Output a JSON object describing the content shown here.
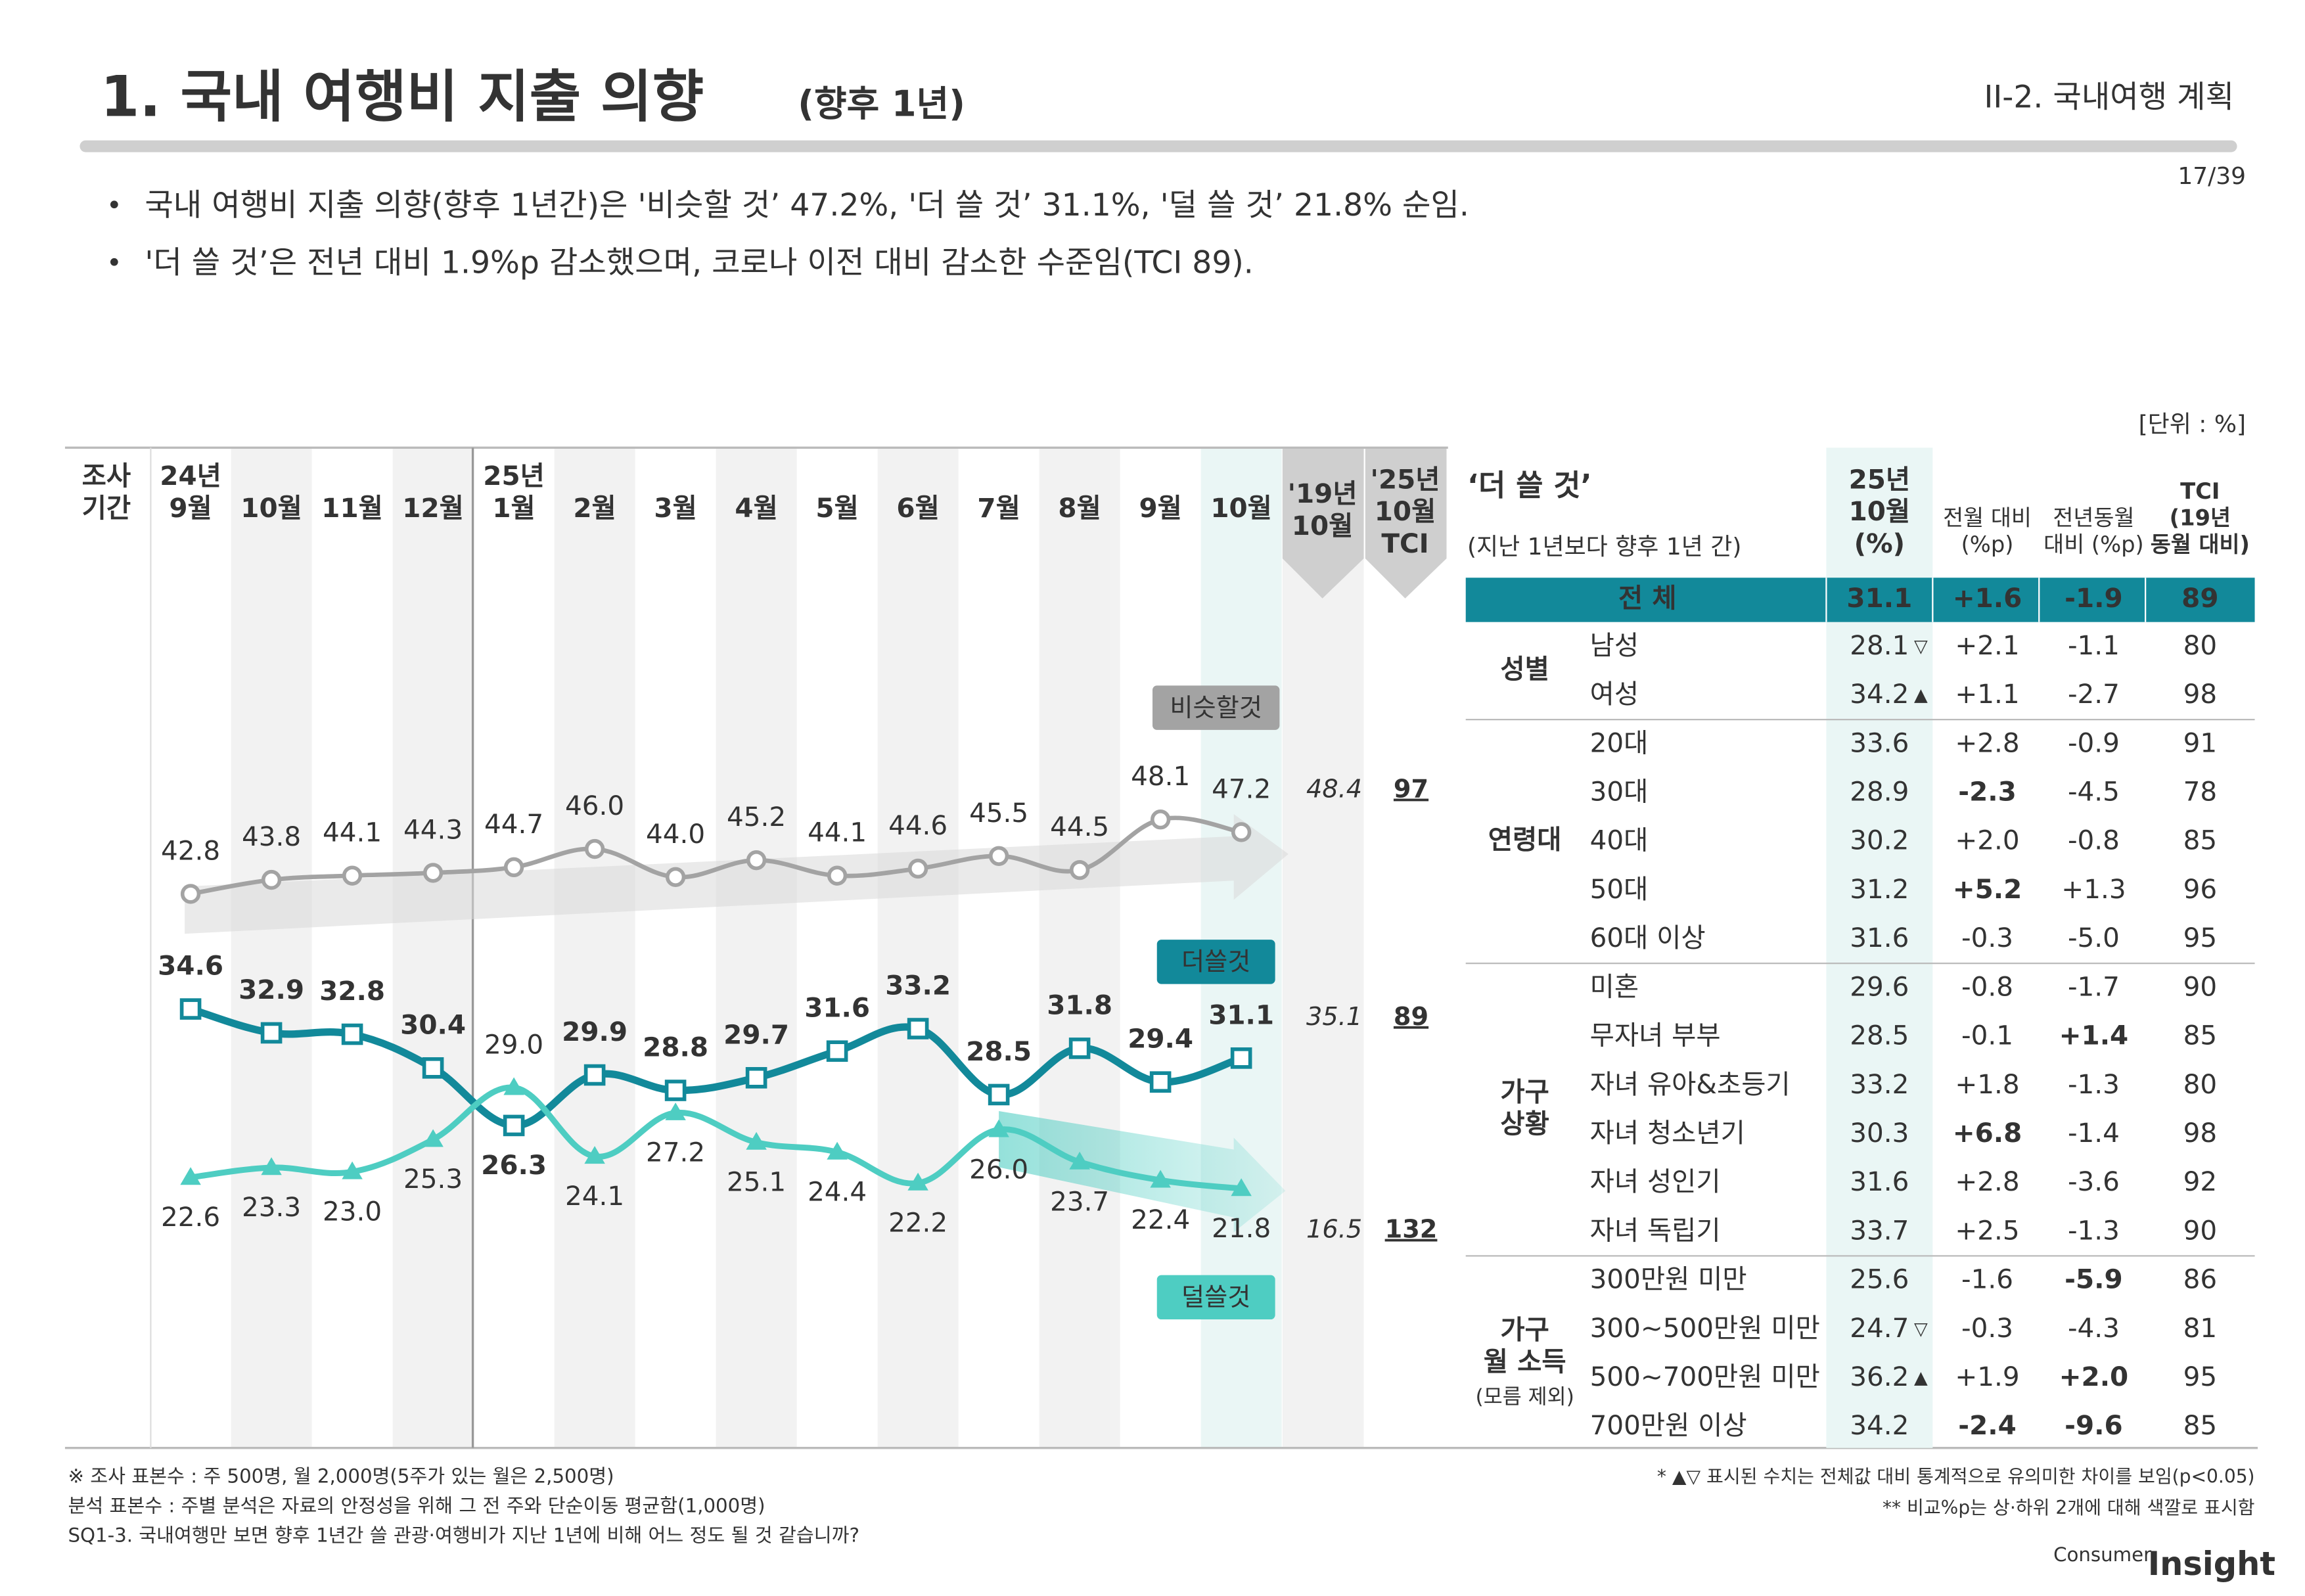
{
  "header": {
    "title": "1. 국내 여행비 지출 의향",
    "title_suffix": "(향후 1년)",
    "section": "II-2. 국내여행 계획",
    "page": "17/39"
  },
  "bullets": [
    "국내 여행비 지출 의향(향후 1년간)은 '비슷할 것’ 47.2%, '더 쓸 것’ 31.1%, '덜 쓸 것’ 21.8% 순임.",
    "'더 쓸 것’은 전년 대비 1.9%p 감소했으며, 코로나 이전 대비 감소한 수준임(TCI 89)."
  ],
  "unit": "[단위 : %]",
  "chart_data": {
    "type": "line",
    "row_label": "조사\n기간",
    "categories": [
      "24년\n9월",
      "10월",
      "11월",
      "12월",
      "25년\n1월",
      "2월",
      "3월",
      "4월",
      "5월",
      "6월",
      "7월",
      "8월",
      "9월",
      "10월"
    ],
    "ref_2019_label": "'19년\n10월",
    "tci_label": "'25년\n10월\nTCI",
    "series": [
      {
        "name": "비슷할것",
        "color": "#a3a3a3",
        "values": [
          42.8,
          43.8,
          44.1,
          44.3,
          44.7,
          46.0,
          44.0,
          45.2,
          44.1,
          44.6,
          45.5,
          44.5,
          48.1,
          47.2
        ],
        "value_labels": [
          "42.8",
          "43.8",
          "44.1",
          "44.3",
          "44.7",
          "46.0",
          "44.0",
          "45.2",
          "44.1",
          "44.6",
          "45.5",
          "44.5",
          "48.1",
          "47.2"
        ],
        "ref_2019": 48.4,
        "tci": 97
      },
      {
        "name": "더쓸것",
        "color": "#12899a",
        "values": [
          34.6,
          32.9,
          32.8,
          30.4,
          26.3,
          29.9,
          28.8,
          29.7,
          31.6,
          33.2,
          28.5,
          31.8,
          29.4,
          31.1
        ],
        "value_labels": [
          "34.6",
          "32.9",
          "32.8",
          "30.4",
          "26.3",
          "29.9",
          "28.8",
          "29.7",
          "31.6",
          "33.2",
          "28.5",
          "31.8",
          "29.4",
          "31.1"
        ],
        "ref_2019": 35.1,
        "tci": 89
      },
      {
        "name": "덜쓸것",
        "color": "#4ecdc2",
        "values": [
          22.6,
          23.3,
          23.0,
          25.3,
          29.0,
          24.1,
          27.2,
          25.1,
          24.4,
          22.2,
          26.0,
          23.7,
          22.4,
          21.8
        ],
        "value_labels": [
          "22.6",
          "23.3",
          "23.0",
          "25.3",
          "29.0",
          "24.1",
          "27.2",
          "25.1",
          "24.4",
          "22.2",
          "26.0",
          "23.7",
          "22.4",
          "21.8"
        ],
        "ref_2019": 16.5,
        "tci": 132
      }
    ]
  },
  "table": {
    "title": "‘더 쓸 것’",
    "subtitle": "(지난 1년보다 향후 1년 간)",
    "columns": [
      "25년\n10월\n(%)",
      "전월 대비\n(%p)",
      "전년동월\n대비 (%p)",
      "TCI\n(19년\n동월 대비)"
    ],
    "total": {
      "label": "전 체",
      "cells": [
        "31.1",
        "+1.6",
        "-1.9",
        "89"
      ]
    },
    "groups": [
      {
        "label": "성별",
        "rows": [
          {
            "label": "남성",
            "cells": [
              "28.1",
              "+2.1",
              "-1.1",
              "80"
            ],
            "sig": "▽"
          },
          {
            "label": "여성",
            "cells": [
              "34.2",
              "+1.1",
              "-2.7",
              "98"
            ],
            "sig": "▲"
          }
        ]
      },
      {
        "label": "연령대",
        "rows": [
          {
            "label": "20대",
            "cells": [
              "33.6",
              "+2.8",
              "-0.9",
              "91"
            ]
          },
          {
            "label": "30대",
            "cells": [
              "28.9",
              "-2.3",
              "-4.5",
              "78"
            ],
            "highlights": [
              {
                "col": 1,
                "color": "#1f2fd6"
              }
            ]
          },
          {
            "label": "40대",
            "cells": [
              "30.2",
              "+2.0",
              "-0.8",
              "85"
            ]
          },
          {
            "label": "50대",
            "cells": [
              "31.2",
              "+5.2",
              "+1.3",
              "96"
            ],
            "highlights": [
              {
                "col": 1,
                "color": "#e8131a"
              }
            ]
          },
          {
            "label": "60대 이상",
            "cells": [
              "31.6",
              "-0.3",
              "-5.0",
              "95"
            ]
          }
        ]
      },
      {
        "label": "가구\n상황",
        "rows": [
          {
            "label": "미혼",
            "cells": [
              "29.6",
              "-0.8",
              "-1.7",
              "90"
            ]
          },
          {
            "label": "무자녀 부부",
            "cells": [
              "28.5",
              "-0.1",
              "+1.4",
              "85"
            ],
            "highlights": [
              {
                "col": 2,
                "color": "#e8131a"
              }
            ]
          },
          {
            "label": "자녀 유아&초등기",
            "cells": [
              "33.2",
              "+1.8",
              "-1.3",
              "80"
            ]
          },
          {
            "label": "자녀 청소년기",
            "cells": [
              "30.3",
              "+6.8",
              "-1.4",
              "98"
            ],
            "highlights": [
              {
                "col": 1,
                "color": "#e8131a"
              }
            ]
          },
          {
            "label": "자녀 성인기",
            "cells": [
              "31.6",
              "+2.8",
              "-3.6",
              "92"
            ]
          },
          {
            "label": "자녀 독립기",
            "cells": [
              "33.7",
              "+2.5",
              "-1.3",
              "90"
            ]
          }
        ]
      },
      {
        "label": "가구\n월 소득",
        "note": "(모름 제외)",
        "rows": [
          {
            "label": "300만원 미만",
            "cells": [
              "25.6",
              "-1.6",
              "-5.9",
              "86"
            ],
            "highlights": [
              {
                "col": 2,
                "color": "#1f2fd6"
              }
            ]
          },
          {
            "label": "300~500만원 미만",
            "cells": [
              "24.7",
              "-0.3",
              "-4.3",
              "81"
            ],
            "sig": "▽"
          },
          {
            "label": "500~700만원 미만",
            "cells": [
              "36.2",
              "+1.9",
              "+2.0",
              "95"
            ],
            "sig": "▲",
            "highlights": [
              {
                "col": 2,
                "color": "#e8131a"
              }
            ]
          },
          {
            "label": "700만원 이상",
            "cells": [
              "34.2",
              "-2.4",
              "-9.6",
              "85"
            ],
            "highlights": [
              {
                "col": 1,
                "color": "#1f2fd6"
              },
              {
                "col": 2,
                "color": "#1f2fd6"
              }
            ]
          }
        ]
      }
    ]
  },
  "footnotes_left": [
    "※ 조사 표본수 : 주 500명, 월 2,000명(5주가 있는 월은 2,500명)",
    " 분석 표본수 : 주별 분석은 자료의 안정성을 위해 그 전 주와 단순이동 평균함(1,000명)",
    "SQ1-3. 국내여행만 보면 향후 1년간 쓸 관광·여행비가 지난 1년에 비해 어느 정도 될 것 같습니까?"
  ],
  "footnotes_right": [
    "* ▲▽ 표시된 수치는 전체값 대비 통계적으로 유의미한 차이를 보임(p<0.05)",
    "** 비교%p는 상·하위 2개에 대해 색깔로 표시함"
  ],
  "logo": {
    "word1": "Consumer",
    "word2": "Insight"
  }
}
